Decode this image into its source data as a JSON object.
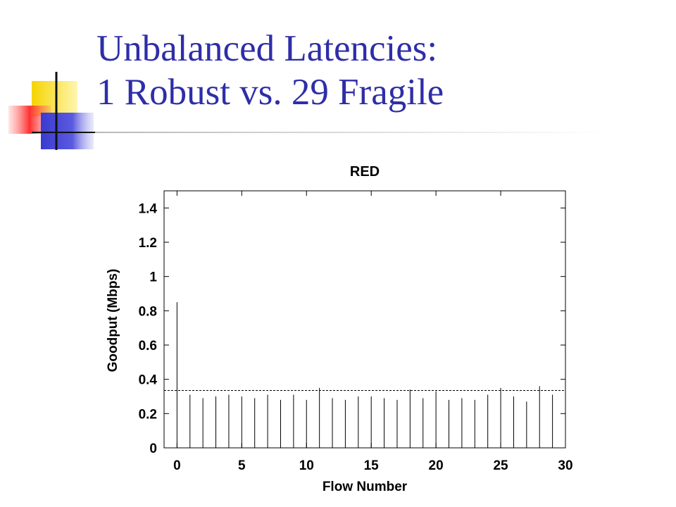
{
  "slide": {
    "title_line1": "Unbalanced Latencies:",
    "title_line2": "1 Robust vs. 29 Fragile",
    "title_color": "#2e2ea8"
  },
  "chart_data": {
    "type": "bar",
    "title": "RED",
    "xlabel": "Flow Number",
    "ylabel": "Goodput (Mbps)",
    "xlim": [
      -1,
      30
    ],
    "ylim": [
      0,
      1.5
    ],
    "xticks": [
      0,
      5,
      10,
      15,
      20,
      25,
      30
    ],
    "yticks": [
      0,
      0.2,
      0.4,
      0.6,
      0.8,
      1,
      1.2,
      1.4
    ],
    "x": [
      0,
      1,
      2,
      3,
      4,
      5,
      6,
      7,
      8,
      9,
      10,
      11,
      12,
      13,
      14,
      15,
      16,
      17,
      18,
      19,
      20,
      21,
      22,
      23,
      24,
      25,
      26,
      27,
      28,
      29
    ],
    "values": [
      0.85,
      0.31,
      0.29,
      0.3,
      0.31,
      0.3,
      0.29,
      0.31,
      0.28,
      0.31,
      0.28,
      0.35,
      0.29,
      0.28,
      0.3,
      0.3,
      0.29,
      0.28,
      0.34,
      0.29,
      0.33,
      0.28,
      0.29,
      0.28,
      0.31,
      0.35,
      0.3,
      0.27,
      0.36,
      0.31
    ],
    "reference_line": 0.335,
    "grid": false
  }
}
